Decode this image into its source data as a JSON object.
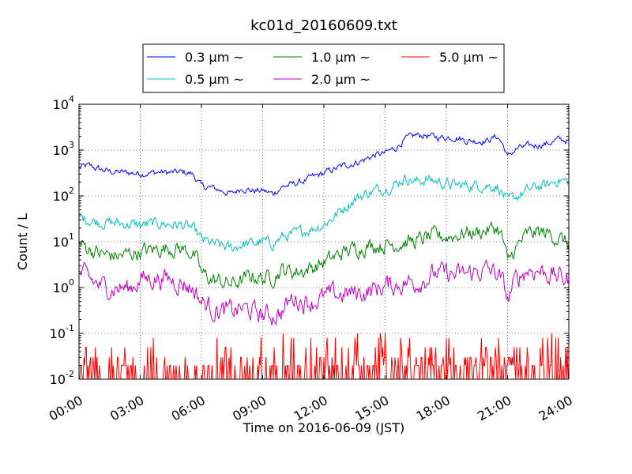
{
  "chart_data": {
    "type": "line",
    "title": "kc01d_20160609.txt",
    "xlabel": "Time on 2016-06-09 (JST)",
    "ylabel": "Count / L",
    "yscale": "log",
    "xlim": [
      "00:00",
      "24:00"
    ],
    "ylim": [
      0.01,
      10000
    ],
    "x_ticks": [
      "00:00",
      "03:00",
      "06:00",
      "09:00",
      "12:00",
      "15:00",
      "18:00",
      "21:00",
      "24:00"
    ],
    "y_ticks": [
      {
        "base": "10",
        "exp": "-2"
      },
      {
        "base": "10",
        "exp": "-1"
      },
      {
        "base": "10",
        "exp": "0"
      },
      {
        "base": "10",
        "exp": "1"
      },
      {
        "base": "10",
        "exp": "2"
      },
      {
        "base": "10",
        "exp": "3"
      },
      {
        "base": "10",
        "exp": "4"
      }
    ],
    "grid": true,
    "legend": {
      "placement": "top-center",
      "columns": 3
    },
    "series": [
      {
        "name": "0.3 μm ~",
        "color": "#0000ff",
        "x": [
          0,
          0.5,
          1,
          1.5,
          2,
          2.5,
          3,
          3.5,
          4,
          4.5,
          5,
          5.5,
          6,
          6.5,
          7,
          7.5,
          8,
          8.5,
          9,
          9.5,
          10,
          10.5,
          11,
          11.5,
          12,
          12.5,
          13,
          13.5,
          14,
          14.5,
          15,
          15.5,
          16,
          16.5,
          17,
          17.5,
          18,
          18.5,
          19,
          19.5,
          20,
          20.5,
          21,
          21.5,
          22,
          22.5,
          23,
          23.5,
          24
        ],
        "values": [
          420,
          450,
          380,
          340,
          330,
          320,
          310,
          320,
          330,
          320,
          330,
          310,
          160,
          150,
          130,
          110,
          150,
          130,
          130,
          110,
          160,
          180,
          210,
          260,
          310,
          380,
          460,
          520,
          620,
          780,
          850,
          1100,
          1700,
          2100,
          2100,
          1900,
          1900,
          1900,
          1600,
          1600,
          1600,
          2000,
          700,
          1100,
          1200,
          1300,
          1400,
          1700,
          1600
        ],
        "noise": 0.06
      },
      {
        "name": "0.5 μm ~",
        "color": "#00bfbf",
        "x": [
          0,
          0.5,
          1,
          1.5,
          2,
          2.5,
          3,
          3.5,
          4,
          4.5,
          5,
          5.5,
          6,
          6.5,
          7,
          7.5,
          8,
          8.5,
          9,
          9.5,
          10,
          10.5,
          11,
          11.5,
          12,
          12.5,
          13,
          13.5,
          14,
          14.5,
          15,
          15.5,
          16,
          16.5,
          17,
          17.5,
          18,
          18.5,
          19,
          19.5,
          20,
          20.5,
          21,
          21.5,
          22,
          22.5,
          23,
          23.5,
          24
        ],
        "values": [
          34,
          30,
          27,
          26,
          25,
          24,
          23,
          24,
          25,
          24,
          23,
          20,
          11,
          9,
          8,
          7,
          9,
          9,
          10,
          9,
          13,
          14,
          17,
          20,
          24,
          35,
          55,
          85,
          110,
          130,
          150,
          180,
          250,
          200,
          230,
          210,
          180,
          170,
          170,
          170,
          170,
          160,
          70,
          100,
          130,
          160,
          170,
          230,
          200
        ],
        "noise": 0.1
      },
      {
        "name": "1.0 μm ~",
        "color": "#008000",
        "x": [
          0,
          0.5,
          1,
          1.5,
          2,
          2.5,
          3,
          3.5,
          4,
          4.5,
          5,
          5.5,
          6,
          6.5,
          7,
          7.5,
          8,
          8.5,
          9,
          9.5,
          10,
          10.5,
          11,
          11.5,
          12,
          12.5,
          13,
          13.5,
          14,
          14.5,
          15,
          15.5,
          16,
          16.5,
          17,
          17.5,
          18,
          18.5,
          19,
          19.5,
          20,
          20.5,
          21,
          21.5,
          22,
          22.5,
          23,
          23.5,
          24
        ],
        "values": [
          9,
          7,
          5.5,
          5,
          4.8,
          5.5,
          6,
          6.5,
          7,
          7.5,
          7,
          6,
          2,
          1.5,
          1.3,
          1.2,
          1.4,
          1.8,
          1.6,
          1.7,
          2.5,
          2.2,
          2.4,
          2.8,
          3.5,
          4.5,
          6,
          7,
          8,
          8.5,
          8.5,
          9,
          10,
          10,
          12,
          13,
          13,
          14,
          16,
          16,
          18,
          20,
          3,
          8,
          14,
          16,
          15,
          12,
          9
        ],
        "noise": 0.14
      },
      {
        "name": "2.0 μm ~",
        "color": "#bf00bf",
        "x": [
          0,
          0.5,
          1,
          1.5,
          2,
          2.5,
          3,
          3.5,
          4,
          4.5,
          5,
          5.5,
          6,
          6.5,
          7,
          7.5,
          8,
          8.5,
          9,
          9.5,
          10,
          10.5,
          11,
          11.5,
          12,
          12.5,
          13,
          13.5,
          14,
          14.5,
          15,
          15.5,
          16,
          16.5,
          17,
          17.5,
          18,
          18.5,
          19,
          19.5,
          20,
          20.5,
          21,
          21.5,
          22,
          22.5,
          23,
          23.5,
          24
        ],
        "values": [
          2,
          1.5,
          1.1,
          1,
          1,
          0.95,
          1.5,
          1.6,
          1.6,
          1.5,
          1.3,
          1,
          0.5,
          0.35,
          0.3,
          0.3,
          0.35,
          0.3,
          0.25,
          0.25,
          0.3,
          0.6,
          0.5,
          0.5,
          0.6,
          0.7,
          0.7,
          0.75,
          0.8,
          0.9,
          1.1,
          1.1,
          1.3,
          1.3,
          1.6,
          2,
          2,
          1.8,
          2,
          2.2,
          2.4,
          2,
          0.5,
          1.6,
          2.5,
          2.4,
          2,
          1.7,
          1.5
        ],
        "noise": 0.18
      },
      {
        "name": "5.0 μm ~",
        "color": "#ff0000",
        "type": "spikes",
        "floor": 0.01,
        "levels": [
          0.02,
          0.03,
          0.05,
          0.08,
          0.1
        ],
        "density_x": [
          0,
          3,
          6,
          9,
          12,
          15,
          18,
          21,
          24
        ],
        "density": [
          0.45,
          0.3,
          0.3,
          0.35,
          0.45,
          0.55,
          0.6,
          0.65,
          0.5
        ]
      }
    ]
  }
}
